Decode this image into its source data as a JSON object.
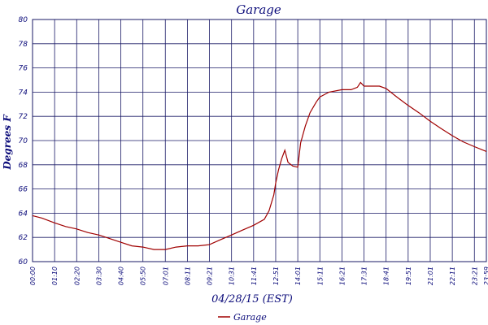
{
  "chart_data": {
    "type": "line",
    "title": "Garage",
    "xlabel": "04/28/15 (EST)",
    "ylabel": "Degrees F",
    "ylim": [
      60,
      80
    ],
    "yticks": [
      60,
      62,
      64,
      66,
      68,
      70,
      72,
      74,
      76,
      78,
      80
    ],
    "xticks": [
      "00:00",
      "01:10",
      "02:20",
      "03:30",
      "04:40",
      "05:50",
      "07:01",
      "08:11",
      "09:21",
      "10:31",
      "11:41",
      "12:51",
      "14:01",
      "15:11",
      "16:21",
      "17:31",
      "18:41",
      "19:51",
      "21:01",
      "22:11",
      "23:21",
      "23:59"
    ],
    "grid": true,
    "legend_position": "bottom",
    "colors": {
      "series": "#a00000",
      "grid": "#1a1a66",
      "text": "#0b0b7a"
    },
    "series": [
      {
        "name": "Garage",
        "x": [
          "00:00",
          "00:30",
          "01:10",
          "01:45",
          "02:20",
          "02:55",
          "03:30",
          "04:05",
          "04:40",
          "05:15",
          "05:50",
          "06:25",
          "07:01",
          "07:35",
          "08:11",
          "08:45",
          "09:21",
          "09:55",
          "10:31",
          "11:05",
          "11:41",
          "12:15",
          "12:30",
          "12:45",
          "12:51",
          "13:00",
          "13:10",
          "13:20",
          "13:30",
          "13:45",
          "14:01",
          "14:10",
          "14:25",
          "14:40",
          "15:00",
          "15:11",
          "15:40",
          "16:21",
          "16:50",
          "17:10",
          "17:20",
          "17:31",
          "17:50",
          "18:20",
          "18:41",
          "19:15",
          "19:51",
          "20:25",
          "21:01",
          "21:35",
          "22:11",
          "22:45",
          "23:21",
          "23:59"
        ],
        "values": [
          63.8,
          63.6,
          63.2,
          62.9,
          62.7,
          62.4,
          62.2,
          61.9,
          61.6,
          61.3,
          61.2,
          61.0,
          61.0,
          61.2,
          61.3,
          61.3,
          61.4,
          61.8,
          62.2,
          62.6,
          63.0,
          63.5,
          64.2,
          65.5,
          66.5,
          67.6,
          68.5,
          69.2,
          68.2,
          67.9,
          67.8,
          69.8,
          71.2,
          72.3,
          73.2,
          73.6,
          74.0,
          74.2,
          74.2,
          74.4,
          74.8,
          74.5,
          74.5,
          74.5,
          74.3,
          73.6,
          72.9,
          72.3,
          71.6,
          71.0,
          70.4,
          69.9,
          69.5,
          69.1
        ]
      }
    ]
  }
}
